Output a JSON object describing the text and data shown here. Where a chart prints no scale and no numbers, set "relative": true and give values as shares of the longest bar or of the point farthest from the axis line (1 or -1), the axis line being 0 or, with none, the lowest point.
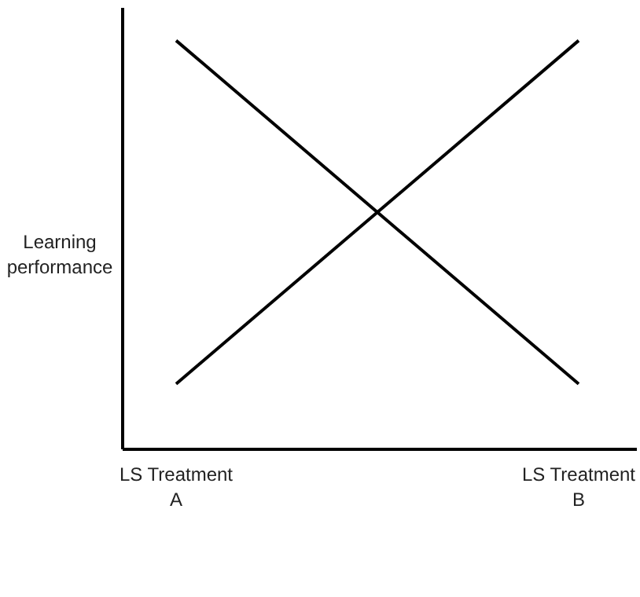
{
  "chart_data": {
    "type": "line",
    "relative": true,
    "ylabel": "Learning performance",
    "categories": [
      "LS Treatment\nA",
      "LS Treatment\nB"
    ],
    "series": [
      {
        "color": "#000000",
        "values": [
          1,
          0.16
        ]
      },
      {
        "color": "#000000",
        "values": [
          0.16,
          1
        ]
      }
    ],
    "marker": "none",
    "line_style": "solid",
    "grid": false,
    "legend": false
  }
}
